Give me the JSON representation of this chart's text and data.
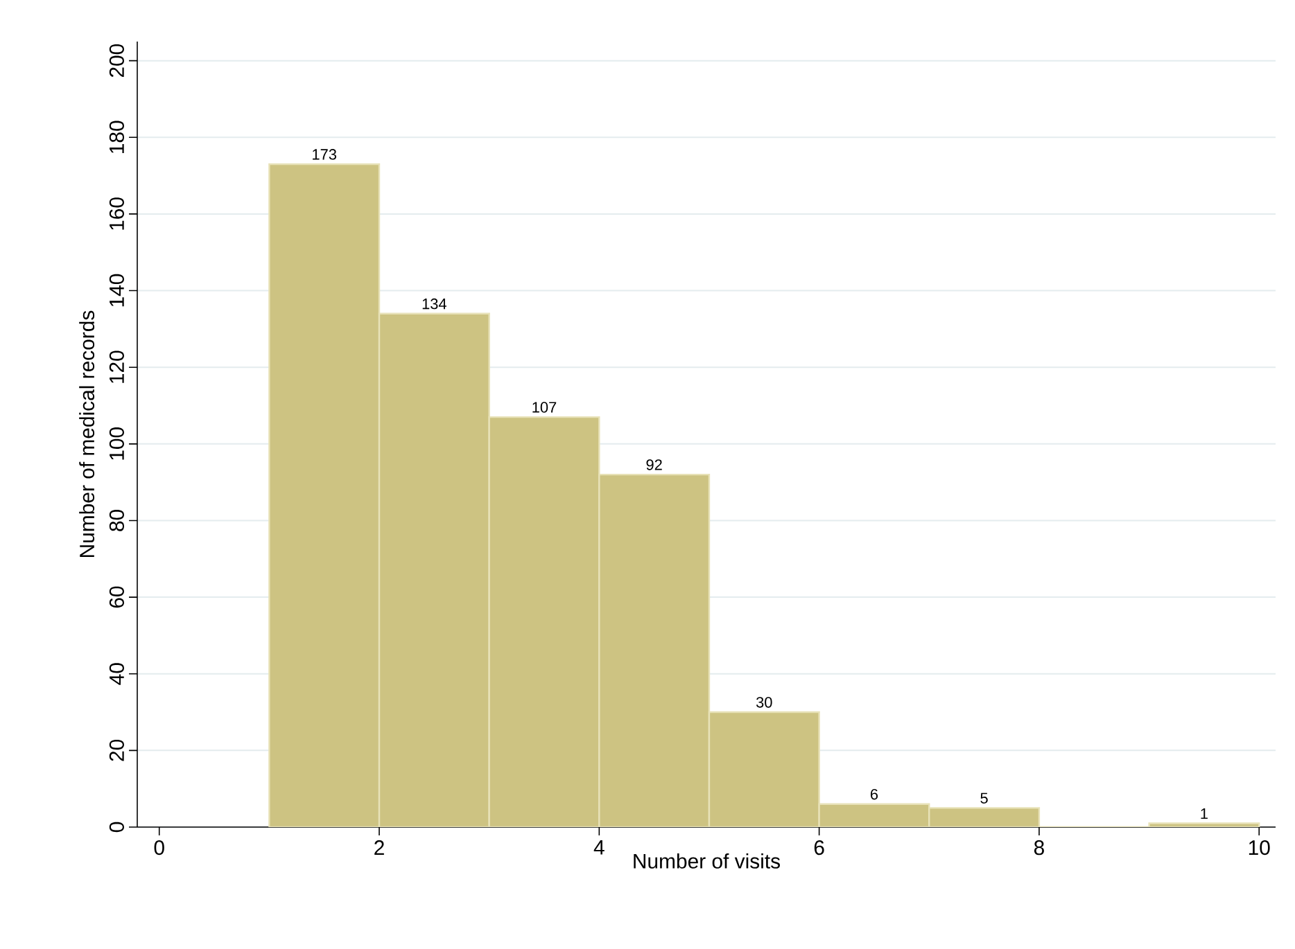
{
  "chart_data": {
    "type": "histogram",
    "xlabel": "Number of visits",
    "ylabel": "Number of medical records",
    "bins": [
      1,
      2,
      3,
      4,
      5,
      6,
      7,
      8,
      9,
      10
    ],
    "values": [
      173,
      134,
      107,
      92,
      30,
      6,
      5,
      0,
      1
    ],
    "value_labels": [
      "173",
      "134",
      "107",
      "92",
      "30",
      "6",
      "5",
      null,
      "1"
    ],
    "color": "#cdc382",
    "xlim": [
      -0.2,
      10.15
    ],
    "ylim": [
      0,
      205
    ],
    "xticks": [
      0,
      2,
      4,
      6,
      8,
      10
    ],
    "yticks": [
      0,
      20,
      40,
      60,
      80,
      100,
      120,
      140,
      160,
      180,
      200
    ],
    "grid": "y"
  }
}
